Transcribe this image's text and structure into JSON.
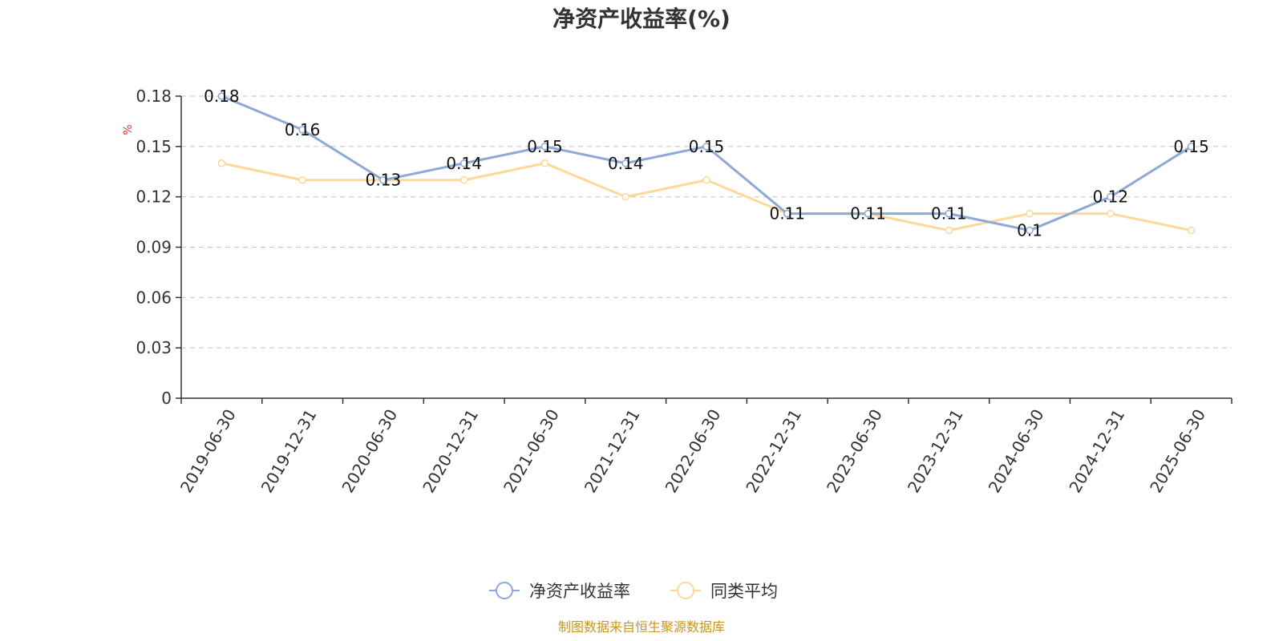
{
  "chart_data": {
    "type": "line",
    "title": "净资产收益率(%)",
    "ylabel": "%",
    "xlabel": "",
    "categories": [
      "2019-06-30",
      "2019-12-31",
      "2020-06-30",
      "2020-12-31",
      "2021-06-30",
      "2021-12-31",
      "2022-06-30",
      "2022-12-31",
      "2023-06-30",
      "2023-12-31",
      "2024-06-30",
      "2024-12-31",
      "2025-06-30"
    ],
    "ylim": [
      0,
      0.18
    ],
    "yticks": [
      0,
      0.03,
      0.06,
      0.09,
      0.12,
      0.15,
      0.18
    ],
    "ytick_labels": [
      "0",
      "0.03",
      "0.06",
      "0.09",
      "0.12",
      "0.15",
      "0.18"
    ],
    "grid": true,
    "legend_position": "bottom",
    "series": [
      {
        "name": "净资产收益率",
        "color": "#8ea9d6",
        "values": [
          0.18,
          0.16,
          0.13,
          0.14,
          0.15,
          0.14,
          0.15,
          0.11,
          0.11,
          0.11,
          0.1,
          0.12,
          0.15
        ],
        "labels": [
          "0.18",
          "0.16",
          "0.13",
          "0.14",
          "0.15",
          "0.14",
          "0.15",
          "0.11",
          "0.11",
          "0.11",
          "0.1",
          "0.12",
          "0.15"
        ]
      },
      {
        "name": "同类平均",
        "color": "#fcd99a",
        "values": [
          0.14,
          0.13,
          0.13,
          0.13,
          0.14,
          0.12,
          0.13,
          0.11,
          0.11,
          0.1,
          0.11,
          0.11,
          0.1
        ]
      }
    ],
    "source": "制图数据来自恒生聚源数据库"
  }
}
